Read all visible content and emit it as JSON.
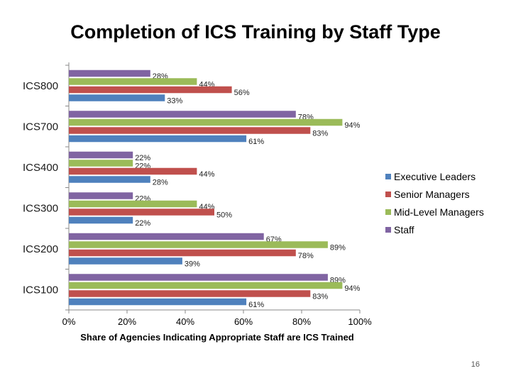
{
  "chart_data": {
    "type": "bar",
    "orientation": "horizontal",
    "title": "Completion of ICS Training by Staff Type",
    "xlabel": "Share of Agencies Indicating Appropriate Staff are ICS Trained",
    "ylabel": "",
    "xlim": [
      0,
      100
    ],
    "x_ticks": [
      "0%",
      "20%",
      "40%",
      "60%",
      "80%",
      "100%"
    ],
    "categories": [
      "ICS800",
      "ICS700",
      "ICS400",
      "ICS300",
      "ICS200",
      "ICS100"
    ],
    "series": [
      {
        "name": "Staff",
        "color": "#8064a2",
        "values": [
          28,
          78,
          22,
          22,
          67,
          89
        ]
      },
      {
        "name": "Mid-Level Managers",
        "color": "#9bbb59",
        "values": [
          44,
          94,
          22,
          44,
          89,
          94
        ]
      },
      {
        "name": "Senior Managers",
        "color": "#c0504d",
        "values": [
          56,
          83,
          44,
          50,
          78,
          83
        ]
      },
      {
        "name": "Executive Leaders",
        "color": "#4f81bd",
        "values": [
          33,
          61,
          28,
          22,
          39,
          61
        ]
      }
    ],
    "legend_position": "right",
    "grid": false
  },
  "page_number": "16"
}
